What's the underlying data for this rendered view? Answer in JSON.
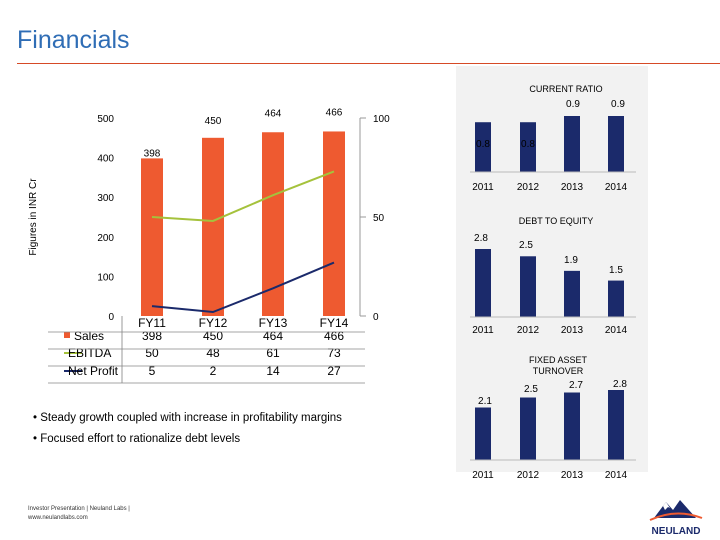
{
  "page": {
    "title": "Financials",
    "bullets": [
      "• Steady growth coupled with increase in profitability margins",
      "• Focused effort to rationalize debt levels"
    ],
    "footer": [
      "Investor Presentation | Neuland Labs |",
      "www.neulandlabs.com"
    ],
    "brand": {
      "name": "NEULAND",
      "accent": "#ee5a30",
      "navy": "#1b2a6b",
      "green": "#a5c23c"
    }
  },
  "chart_data": [
    {
      "type": "bar",
      "id": "main",
      "ylabel": "Figures in INR Cr",
      "categories": [
        "FY11",
        "FY12",
        "FY13",
        "FY14"
      ],
      "ylim": [
        0,
        500
      ],
      "yticks": [
        0,
        100,
        200,
        300,
        400,
        500
      ],
      "y2lim": [
        0,
        100
      ],
      "y2ticks": [
        0,
        50,
        100
      ],
      "series": [
        {
          "name": "Sales",
          "axis": "left",
          "kind": "bar",
          "color": "#ee5a30",
          "values": [
            398,
            450,
            464,
            466
          ],
          "table": [
            "398",
            "450",
            "464",
            "466"
          ]
        },
        {
          "name": "EBITDA",
          "axis": "right",
          "kind": "line",
          "color": "#a5c23c",
          "values": [
            50,
            48,
            61,
            73
          ],
          "table": [
            "50",
            "48",
            "61",
            "73"
          ]
        },
        {
          "name": "Net Profit",
          "axis": "right",
          "kind": "line",
          "color": "#1b2a6b",
          "values": [
            5,
            2,
            14,
            27
          ],
          "table": [
            "5",
            "2",
            "14",
            "27"
          ]
        }
      ],
      "data_labels": [
        "398",
        "450",
        "464",
        "466"
      ]
    },
    {
      "type": "bar",
      "id": "current-ratio",
      "title": "CURRENT RATIO",
      "categories": [
        "2011",
        "2012",
        "2013",
        "2014"
      ],
      "values": [
        0.8,
        0.8,
        0.9,
        0.9
      ],
      "labels": [
        "0.8",
        "0.8",
        "0.9",
        "0.9"
      ],
      "color": "#1b2a6b"
    },
    {
      "type": "bar",
      "id": "debt-to-equity",
      "title": "DEBT TO EQUITY",
      "categories": [
        "2011",
        "2012",
        "2013",
        "2014"
      ],
      "values": [
        2.8,
        2.5,
        1.9,
        1.5
      ],
      "labels": [
        "2.8",
        "2.5",
        "1.9",
        "1.5"
      ],
      "color": "#1b2a6b"
    },
    {
      "type": "bar",
      "id": "fixed-asset-turnover",
      "title_lines": [
        "FIXED ASSET",
        "TURNOVER"
      ],
      "categories": [
        "2011",
        "2012",
        "2013",
        "2014"
      ],
      "values": [
        2.1,
        2.5,
        2.7,
        2.8
      ],
      "labels": [
        "2.1",
        "2.5",
        "2.7",
        "2.8"
      ],
      "color": "#1b2a6b"
    }
  ]
}
